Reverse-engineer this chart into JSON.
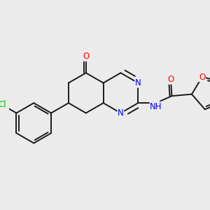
{
  "background_color": "#ebebeb",
  "bond_color": "#1a1a1a",
  "bond_width": 1.4,
  "atom_colors": {
    "N": "#0000ff",
    "O": "#ff0000",
    "Cl": "#00bb00"
  },
  "font_size": 8.5,
  "double_off": 0.055
}
